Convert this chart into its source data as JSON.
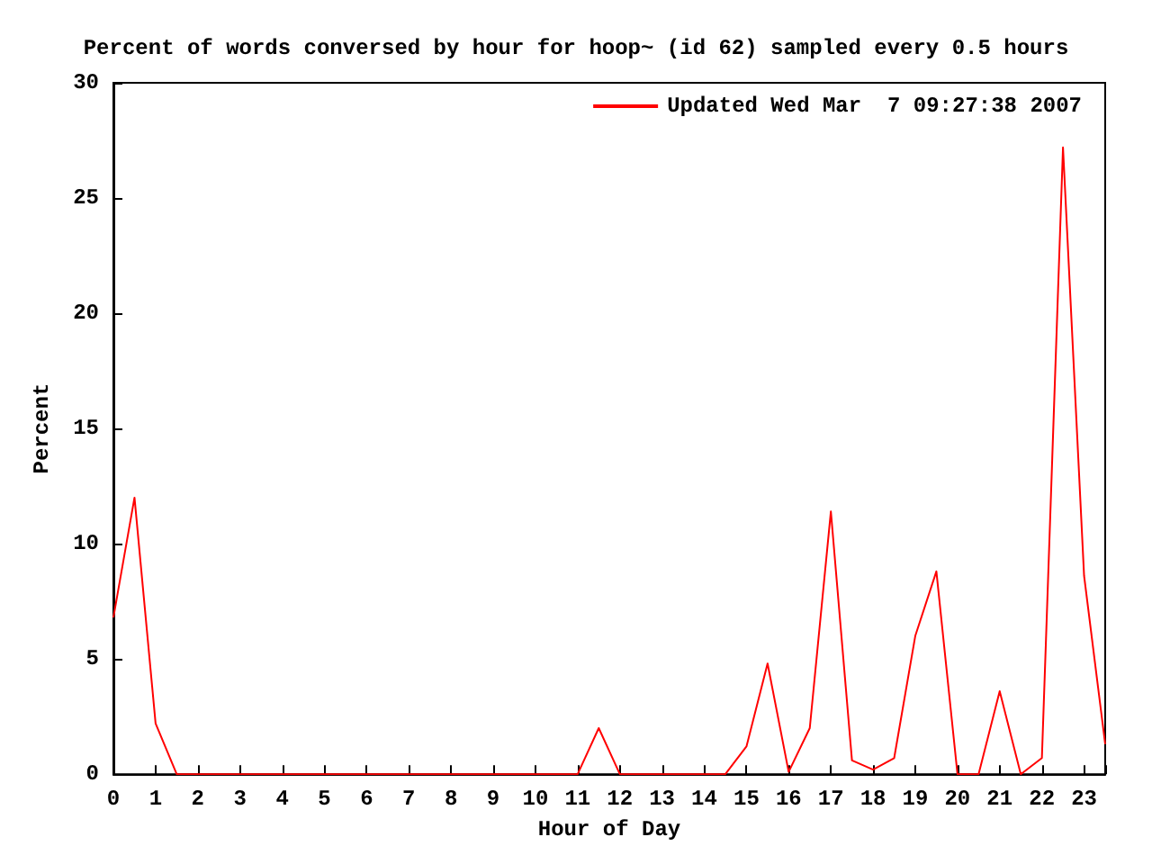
{
  "chart_data": {
    "type": "line",
    "title": "Percent of words conversed by hour for hoop~ (id 62) sampled every 0.5 hours",
    "xlabel": "Hour of Day",
    "ylabel": "Percent",
    "x": [
      0,
      0.5,
      1,
      1.5,
      2,
      2.5,
      3,
      3.5,
      4,
      4.5,
      5,
      5.5,
      6,
      6.5,
      7,
      7.5,
      8,
      8.5,
      9,
      9.5,
      10,
      10.5,
      11,
      11.5,
      12,
      12.5,
      13,
      13.5,
      14,
      14.5,
      15,
      15.5,
      16,
      16.5,
      17,
      17.5,
      18,
      18.5,
      19,
      19.5,
      20,
      20.5,
      21,
      21.5,
      22,
      22.5,
      23,
      23.5
    ],
    "series": [
      {
        "name": "Updated Wed Mar  7 09:27:38 2007",
        "color": "#ff0000",
        "values": [
          6.8,
          12,
          2.2,
          0,
          0,
          0,
          0,
          0,
          0,
          0,
          0,
          0,
          0,
          0,
          0,
          0,
          0,
          0,
          0,
          0,
          0,
          0,
          0,
          2,
          0,
          0,
          0,
          0,
          0,
          0,
          1.2,
          4.8,
          0.1,
          2,
          11.4,
          0.6,
          0.2,
          0.7,
          6,
          8.8,
          0,
          0,
          3.6,
          0,
          0.7,
          27.2,
          8.6,
          1.3
        ]
      }
    ],
    "xlim": [
      0,
      23.5
    ],
    "xticks": [
      0,
      1,
      2,
      3,
      4,
      5,
      6,
      7,
      8,
      9,
      10,
      11,
      12,
      13,
      14,
      15,
      16,
      17,
      18,
      19,
      20,
      21,
      22,
      23
    ],
    "ylim": [
      0,
      30
    ],
    "yticks": [
      0,
      5,
      10,
      15,
      20,
      25,
      30
    ],
    "grid": false,
    "legend": "top right",
    "marker": "none",
    "line_style": "solid"
  }
}
